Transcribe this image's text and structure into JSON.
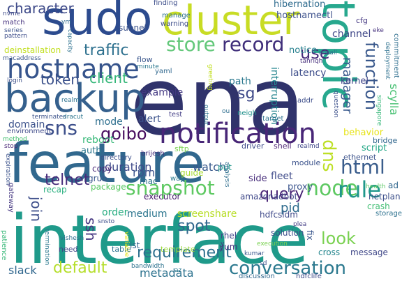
{
  "words": [
    {
      "text": "ena",
      "color": "#30336b"
    },
    {
      "text": "interface",
      "color": "#1f9a8a"
    },
    {
      "text": "feature",
      "color": "#31688e"
    },
    {
      "text": "sudo",
      "color": "#2c4b8e"
    },
    {
      "text": "cluster",
      "color": "#c8dc24"
    },
    {
      "text": "topic",
      "color": "#27a88e"
    },
    {
      "text": "backup",
      "color": "#35608d"
    },
    {
      "text": "hostname",
      "color": "#36548c"
    },
    {
      "text": "notification",
      "color": "#482677"
    },
    {
      "text": "store",
      "color": "#64c87b"
    },
    {
      "text": "record",
      "color": "#3f2e7a"
    },
    {
      "text": "sns",
      "color": "#3b4e8a"
    },
    {
      "text": "goibo",
      "color": "#460b5e"
    },
    {
      "text": "snapshot",
      "color": "#5ec962"
    },
    {
      "text": "node",
      "color": "#5ec962"
    },
    {
      "text": "html",
      "color": "#3a5d8c"
    },
    {
      "text": "rule",
      "color": "#1f978b"
    },
    {
      "text": "dns",
      "color": "#bddf26"
    },
    {
      "text": "function",
      "color": "#38578b"
    },
    {
      "text": "conversation",
      "color": "#2a788e"
    },
    {
      "text": "requirement",
      "color": "#2d708e"
    },
    {
      "text": "default",
      "color": "#b5de2b"
    },
    {
      "text": "query",
      "color": "#482475"
    },
    {
      "text": "telnet",
      "color": "#472d7b"
    },
    {
      "text": "traffic",
      "color": "#2d708e"
    },
    {
      "text": "character",
      "color": "#3e4a89"
    },
    {
      "text": "use",
      "color": "#472c7a"
    },
    {
      "text": "token",
      "color": "#3b518b"
    },
    {
      "text": "client",
      "color": "#35b779"
    },
    {
      "text": "sg",
      "color": "#3e4989"
    },
    {
      "text": "spot",
      "color": "#31688e"
    },
    {
      "text": "look",
      "color": "#7ad151"
    },
    {
      "text": "ssh",
      "color": "#453781"
    },
    {
      "text": "join",
      "color": "#3d4e8a"
    },
    {
      "text": "pid",
      "color": "#2f6c8e"
    },
    {
      "text": "manager",
      "color": "#38598c"
    },
    {
      "text": "metadata",
      "color": "#2c728e"
    },
    {
      "text": "slack",
      "color": "#31678e"
    },
    {
      "text": "screenshare",
      "color": "#b8de29"
    },
    {
      "text": "watch",
      "color": "#38588c"
    },
    {
      "text": "duration",
      "color": "#3e4a89"
    },
    {
      "text": "example",
      "color": "#443983"
    },
    {
      "text": "alert",
      "color": "#3b528b"
    },
    {
      "text": "mode",
      "color": "#2e6f8e"
    },
    {
      "text": "reboot",
      "color": "#37b878"
    },
    {
      "text": "domain",
      "color": "#3b518b"
    },
    {
      "text": "path",
      "color": "#2a788e"
    },
    {
      "text": "latency",
      "color": "#3d4d8a"
    },
    {
      "text": "interruption",
      "color": "#25858e"
    },
    {
      "text": "channel",
      "color": "#3f4788"
    },
    {
      "text": "notice",
      "color": "#27808e"
    },
    {
      "text": "kernel",
      "color": "#404588"
    },
    {
      "text": "scylla",
      "color": "#44bf70"
    },
    {
      "text": "behavior",
      "color": "#e7e419"
    },
    {
      "text": "script",
      "color": "#22a785"
    },
    {
      "text": "ethernet",
      "color": "#3b528b"
    },
    {
      "text": "bridge",
      "color": "#31678e"
    },
    {
      "text": "fleet",
      "color": "#3e4a89"
    },
    {
      "text": "proxy",
      "color": "#3a548c"
    },
    {
      "text": "side",
      "color": "#472d7b"
    },
    {
      "text": "put",
      "color": "#1f968b"
    },
    {
      "text": "rpm",
      "color": "#3b528b"
    },
    {
      "text": "mac",
      "color": "#2d708e"
    },
    {
      "text": "guide",
      "color": "#a8db34"
    },
    {
      "text": "copy",
      "color": "#482878"
    },
    {
      "text": "grub",
      "color": "#39568c"
    },
    {
      "text": "package",
      "color": "#5ac864"
    },
    {
      "text": "recap",
      "color": "#29af7f"
    },
    {
      "text": "order",
      "color": "#27ad81"
    },
    {
      "text": "auth",
      "color": "#2a768e"
    },
    {
      "text": "amazonadbot",
      "color": "#3f4889"
    },
    {
      "text": "executor",
      "color": "#481b6d"
    },
    {
      "text": "hdfcsldm",
      "color": "#3e4989"
    },
    {
      "text": "medium",
      "color": "#2b758e"
    },
    {
      "text": "rhel",
      "color": "#404688"
    },
    {
      "text": "yum",
      "color": "#46337f"
    },
    {
      "text": "solution",
      "color": "#3c4f8a"
    },
    {
      "text": "fix",
      "color": "#39568c"
    },
    {
      "text": "cross",
      "color": "#24868e"
    },
    {
      "text": "message",
      "color": "#3f4788"
    },
    {
      "text": "crash",
      "color": "#40bd72"
    },
    {
      "text": "netplan",
      "color": "#3c4f8a"
    },
    {
      "text": "storage",
      "color": "#2c718e"
    },
    {
      "text": "ad",
      "color": "#31678e"
    },
    {
      "text": "module",
      "color": "#3b528b"
    },
    {
      "text": "shell",
      "color": "#481f70"
    },
    {
      "text": "driver",
      "color": "#3e4c8a"
    },
    {
      "text": "sftp",
      "color": "#7ad151"
    },
    {
      "text": "brijesh",
      "color": "#46307e"
    },
    {
      "text": "directory",
      "color": "#3c508b"
    },
    {
      "text": "way",
      "color": "#2a788e"
    },
    {
      "text": "ist",
      "color": "#33638d"
    },
    {
      "text": "need",
      "color": "#404588"
    },
    {
      "text": "table",
      "color": "#2d708e"
    },
    {
      "text": "template",
      "color": "#9bd93c"
    },
    {
      "text": "subnet",
      "color": "#3b528b"
    },
    {
      "text": "finding",
      "color": "#3d4e8a"
    },
    {
      "text": "hibernation",
      "color": "#2f6b8e"
    },
    {
      "text": "hostnamectl",
      "color": "#3c508b"
    },
    {
      "text": "cfg",
      "color": "#453882"
    },
    {
      "text": "manage",
      "color": "#2c728e"
    },
    {
      "text": "warning",
      "color": "#3d4d8a"
    },
    {
      "text": "match",
      "color": "#46327e"
    },
    {
      "text": "deinstallation",
      "color": "#c2df23"
    },
    {
      "text": "macaddress",
      "color": "#39568c"
    },
    {
      "text": "flow",
      "color": "#39568c"
    },
    {
      "text": "minute",
      "color": "#2a778e"
    },
    {
      "text": "login",
      "color": "#3c4f8a"
    },
    {
      "text": "yaml",
      "color": "#31688e"
    },
    {
      "text": "test",
      "color": "#433e85"
    },
    {
      "text": "neigh",
      "color": "#21918c"
    },
    {
      "text": "target",
      "color": "#2d708e"
    },
    {
      "text": "addr",
      "color": "#3d4e8a"
    },
    {
      "text": "install",
      "color": "#2c728e"
    },
    {
      "text": "commitment",
      "color": "#2e6e8e"
    },
    {
      "text": "tahriqh",
      "color": "#472f7d"
    },
    {
      "text": "environment",
      "color": "#3e4a89"
    },
    {
      "text": "method",
      "color": "#44bf70"
    },
    {
      "text": "stop",
      "color": "#482777"
    },
    {
      "text": "terminates",
      "color": "#3b528b"
    },
    {
      "text": "dracut",
      "color": "#2b758e"
    },
    {
      "text": "realmd",
      "color": "#3f4788"
    },
    {
      "text": "realm",
      "color": "#2c728e"
    },
    {
      "text": "gateway",
      "color": "#453781"
    },
    {
      "text": "vishesh",
      "color": "#2e6e8e"
    },
    {
      "text": "snsto",
      "color": "#3d4e8a"
    },
    {
      "text": "patience",
      "color": "#37b878"
    },
    {
      "text": "termination",
      "color": "#2a788e"
    },
    {
      "text": "variable",
      "color": "#e5e419"
    },
    {
      "text": "bandwidth",
      "color": "#2c728e"
    },
    {
      "text": "discussion",
      "color": "#31688e"
    },
    {
      "text": "hdfclife",
      "color": "#3e4a89"
    },
    {
      "text": "kumar",
      "color": "#39568c"
    },
    {
      "text": "plea",
      "color": "#433e85"
    },
    {
      "text": "execution",
      "color": "#7ad151"
    },
    {
      "text": "health",
      "color": "#5ac864"
    },
    {
      "text": "expiration",
      "color": "#3b528b"
    },
    {
      "text": "analysis",
      "color": "#2e6e8e"
    },
    {
      "text": "question",
      "color": "#3c508b"
    },
    {
      "text": "singapore",
      "color": "#35b779"
    },
    {
      "text": "deployment",
      "color": "#2d708e"
    },
    {
      "text": "capacity",
      "color": "#2d708e"
    },
    {
      "text": "pattern",
      "color": "#3d4d8a"
    },
    {
      "text": "series",
      "color": "#3b528b"
    },
    {
      "text": "nvme",
      "color": "#3e4a89"
    },
    {
      "text": "eke",
      "color": "#46327e"
    },
    {
      "text": "greeting",
      "color": "#c2df23"
    },
    {
      "text": "output",
      "color": "#2c728e"
    },
    {
      "text": "ou",
      "color": "#2e6e8e"
    },
    {
      "text": "sd",
      "color": "#3d4e8a"
    },
    {
      "text": "az",
      "color": "#2a788e"
    },
    {
      "text": "y",
      "color": "#453781"
    },
    {
      "text": "ym",
      "color": "#31688e"
    }
  ]
}
